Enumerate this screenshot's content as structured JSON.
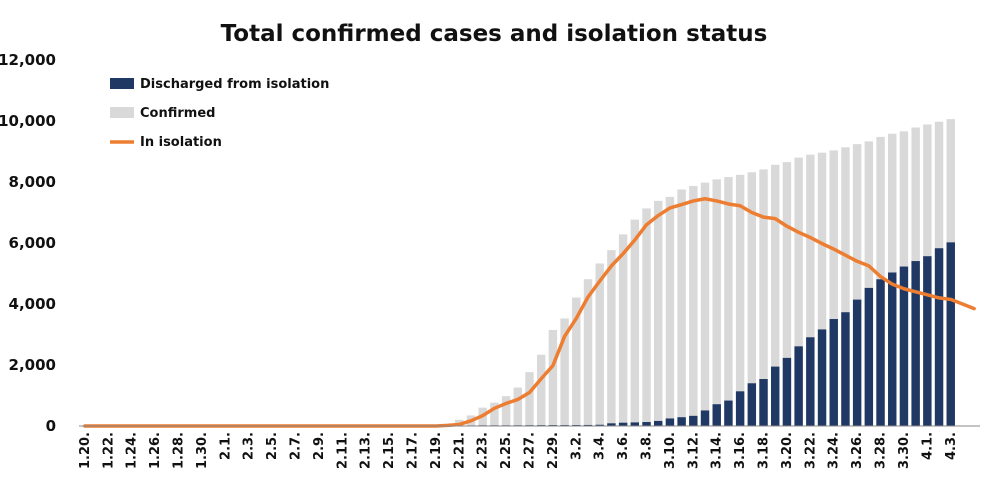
{
  "chart_data": {
    "type": "bar",
    "title": "Total confirmed cases and isolation status",
    "xlabel": "",
    "ylabel": "",
    "ylim": [
      0,
      12000
    ],
    "yticks": [
      "0",
      "2,000",
      "4,000",
      "6,000",
      "8,000",
      "10,000",
      "12,000"
    ],
    "ytick_values": [
      0,
      2000,
      4000,
      6000,
      8000,
      10000,
      12000
    ],
    "xtick_labels": [
      "1.20.",
      "1.22.",
      "1.24.",
      "1.26.",
      "1.28.",
      "1.30.",
      "2.1.",
      "2.3.",
      "2.5.",
      "2.7.",
      "2.9.",
      "2.11.",
      "2.13.",
      "2.15.",
      "2.17.",
      "2.19.",
      "2.21.",
      "2.23.",
      "2.25.",
      "2.27.",
      "2.29.",
      "3.2.",
      "3.4.",
      "3.6.",
      "3.8.",
      "3.10.",
      "3.12.",
      "3.14.",
      "3.16.",
      "3.18.",
      "3.20.",
      "3.22.",
      "3.24.",
      "3.26.",
      "3.28.",
      "3.30.",
      "4.1.",
      "4.3."
    ],
    "legend": [
      "Discharged from isolation",
      "Confirmed",
      "In isolation"
    ],
    "legend_position": "top-left",
    "colors": {
      "discharged": "#203864",
      "confirmed": "#d9d9d9",
      "isolation": "#ed7d31"
    },
    "bar_start_index": 32,
    "confirmed": [
      204,
      346,
      602,
      763,
      977,
      1261,
      1766,
      2337,
      3150,
      3526,
      4212,
      4812,
      5328,
      5766,
      6284,
      6767,
      7134,
      7382,
      7513,
      7755,
      7869,
      7979,
      8086,
      8162,
      8236,
      8320,
      8413,
      8565,
      8652,
      8799,
      8897,
      8961,
      9037,
      9137,
      9241,
      9332,
      9478,
      9583,
      9661,
      9786,
      9887,
      9976,
      10062
    ],
    "discharged": [
      17,
      18,
      22,
      22,
      22,
      24,
      26,
      28,
      30,
      30,
      31,
      34,
      41,
      88,
      108,
      118,
      130,
      166,
      247,
      288,
      333,
      510,
      714,
      834,
      1137,
      1401,
      1540,
      1947,
      2233,
      2612,
      2909,
      3166,
      3507,
      3730,
      4144,
      4528,
      4811,
      5033,
      5228,
      5408,
      5567,
      5828,
      6021
    ],
    "in_isolation": [
      0,
      0,
      0,
      0,
      0,
      0,
      0,
      0,
      0,
      0,
      0,
      0,
      0,
      0,
      0,
      0,
      0,
      0,
      0,
      0,
      0,
      0,
      0,
      0,
      0,
      0,
      0,
      0,
      0,
      0,
      0,
      20,
      50,
      170,
      340,
      580,
      740,
      870,
      1100,
      1550,
      1980,
      2940,
      3530,
      4230,
      4750,
      5250,
      5650,
      6100,
      6600,
      6900,
      7150,
      7260,
      7380,
      7450,
      7380,
      7280,
      7220,
      7000,
      6850,
      6800,
      6550,
      6350,
      6180,
      5980,
      5800,
      5600,
      5400,
      5250,
      4900,
      4650,
      4500,
      4400,
      4300,
      4200,
      4150,
      4000,
      3850
    ]
  }
}
